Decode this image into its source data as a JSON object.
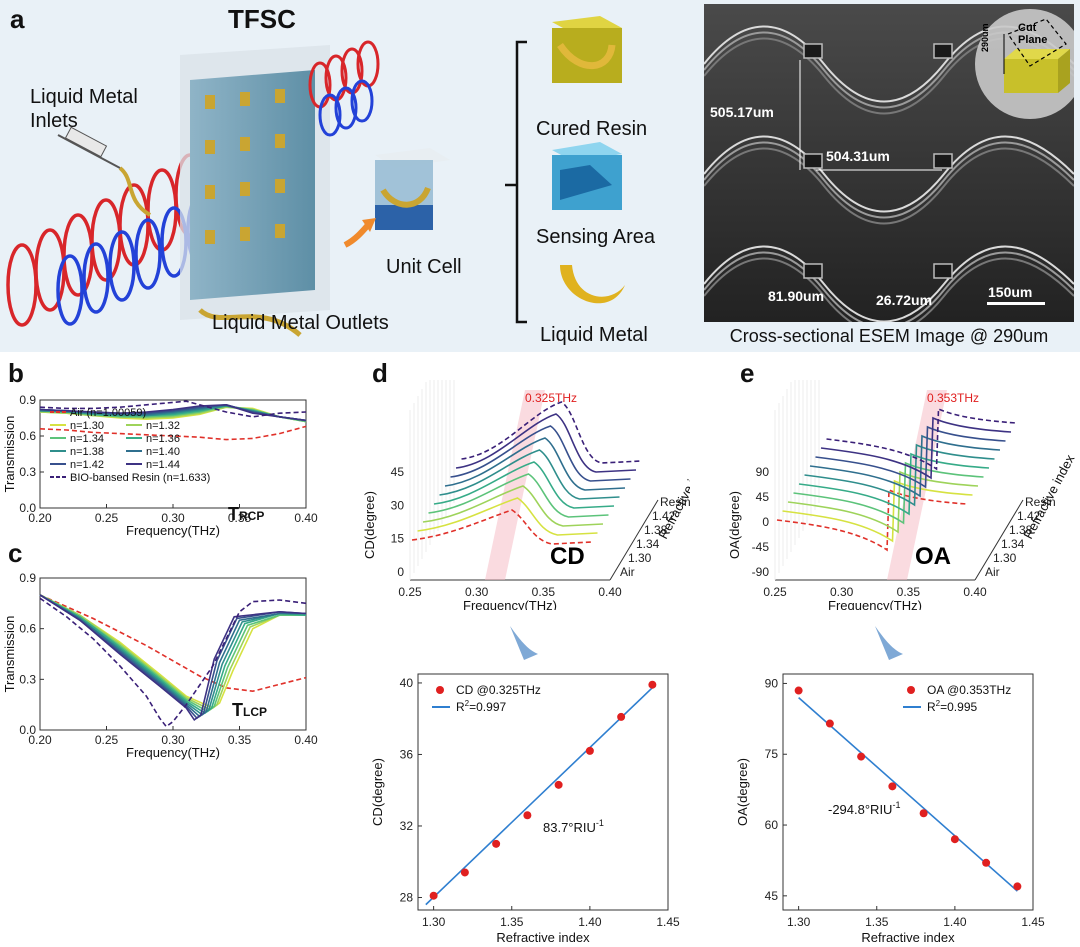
{
  "panel_a": {
    "label": "a",
    "device": "TFSC",
    "inlets": "Liquid Metal Inlets",
    "outlets": "Liquid Metal Outlets",
    "unit_cell": "Unit Cell",
    "parts": [
      "Cured Resin",
      "Sensing Area",
      "Liquid Metal"
    ],
    "sem_caption": "Cross-sectional ESEM Image @ 290um",
    "sem_labels": {
      "period_v": "505.17um",
      "period_h": "504.31um",
      "width1": "81.90um",
      "width2": "26.72um",
      "scalebar": "150um",
      "cut": "Cut Plane",
      "depth": "290um"
    }
  },
  "chart_data": [
    {
      "id": "b",
      "type": "line",
      "panel_label": "b",
      "xlabel": "Frequency(THz)",
      "ylabel": "Transmission",
      "xlim": [
        0.2,
        0.4
      ],
      "ylim": [
        0.0,
        0.9
      ],
      "xticks": [
        "0.20",
        "0.25",
        "0.30",
        "0.35",
        "0.40"
      ],
      "yticks": [
        "0.0",
        "0.3",
        "0.6",
        "0.9"
      ],
      "annotation": "T_RCP",
      "annotation_main": "T",
      "annotation_sub": "RCP",
      "legend": [
        "Air (n=1.00059)",
        "n=1.30",
        "n=1.32",
        "n=1.34",
        "n=1.36",
        "n=1.38",
        "n=1.40",
        "n=1.42",
        "n=1.44",
        "BIO-bansed Resin (n=1.633)"
      ],
      "series": [
        {
          "name": "Air (n=1.00059)",
          "x": [
            0.2,
            0.22,
            0.24,
            0.26,
            0.28,
            0.3,
            0.32,
            0.34,
            0.36,
            0.38,
            0.4
          ],
          "y": [
            0.66,
            0.65,
            0.63,
            0.62,
            0.61,
            0.6,
            0.59,
            0.57,
            0.58,
            0.62,
            0.68
          ]
        },
        {
          "name": "n=1.30",
          "x": [
            0.2,
            0.22,
            0.24,
            0.26,
            0.28,
            0.3,
            0.32,
            0.34,
            0.36,
            0.38,
            0.4
          ],
          "y": [
            0.8,
            0.79,
            0.77,
            0.75,
            0.74,
            0.75,
            0.78,
            0.84,
            0.83,
            0.76,
            0.72
          ]
        },
        {
          "name": "n=1.32",
          "x": [
            0.2,
            0.22,
            0.24,
            0.26,
            0.28,
            0.3,
            0.32,
            0.34,
            0.36,
            0.38,
            0.4
          ],
          "y": [
            0.8,
            0.79,
            0.77,
            0.76,
            0.75,
            0.76,
            0.79,
            0.84,
            0.82,
            0.76,
            0.72
          ]
        },
        {
          "name": "n=1.34",
          "x": [
            0.2,
            0.22,
            0.24,
            0.26,
            0.28,
            0.3,
            0.32,
            0.34,
            0.36,
            0.38,
            0.4
          ],
          "y": [
            0.81,
            0.8,
            0.78,
            0.76,
            0.76,
            0.77,
            0.8,
            0.85,
            0.82,
            0.76,
            0.72
          ]
        },
        {
          "name": "n=1.36",
          "x": [
            0.2,
            0.22,
            0.24,
            0.26,
            0.28,
            0.3,
            0.32,
            0.34,
            0.36,
            0.38,
            0.4
          ],
          "y": [
            0.81,
            0.8,
            0.78,
            0.77,
            0.77,
            0.78,
            0.81,
            0.85,
            0.81,
            0.76,
            0.73
          ]
        },
        {
          "name": "n=1.38",
          "x": [
            0.2,
            0.22,
            0.24,
            0.26,
            0.28,
            0.3,
            0.32,
            0.34,
            0.36,
            0.38,
            0.4
          ],
          "y": [
            0.81,
            0.8,
            0.79,
            0.78,
            0.77,
            0.79,
            0.82,
            0.85,
            0.81,
            0.76,
            0.73
          ]
        },
        {
          "name": "n=1.40",
          "x": [
            0.2,
            0.22,
            0.24,
            0.26,
            0.28,
            0.3,
            0.32,
            0.34,
            0.36,
            0.38,
            0.4
          ],
          "y": [
            0.82,
            0.81,
            0.79,
            0.78,
            0.78,
            0.8,
            0.83,
            0.86,
            0.8,
            0.76,
            0.73
          ]
        },
        {
          "name": "n=1.42",
          "x": [
            0.2,
            0.22,
            0.24,
            0.26,
            0.28,
            0.3,
            0.32,
            0.34,
            0.36,
            0.38,
            0.4
          ],
          "y": [
            0.82,
            0.81,
            0.8,
            0.79,
            0.79,
            0.81,
            0.84,
            0.86,
            0.8,
            0.76,
            0.73
          ]
        },
        {
          "name": "n=1.44",
          "x": [
            0.2,
            0.22,
            0.24,
            0.26,
            0.28,
            0.3,
            0.32,
            0.34,
            0.36,
            0.38,
            0.4
          ],
          "y": [
            0.82,
            0.81,
            0.8,
            0.79,
            0.8,
            0.82,
            0.85,
            0.86,
            0.79,
            0.76,
            0.73
          ]
        },
        {
          "name": "BIO-bansed Resin (n=1.633)",
          "x": [
            0.2,
            0.22,
            0.24,
            0.26,
            0.28,
            0.3,
            0.31,
            0.32,
            0.34,
            0.36,
            0.38,
            0.4
          ],
          "y": [
            0.84,
            0.83,
            0.83,
            0.84,
            0.86,
            0.88,
            0.89,
            0.86,
            0.8,
            0.76,
            0.79,
            0.8
          ]
        }
      ]
    },
    {
      "id": "c",
      "type": "line",
      "panel_label": "c",
      "xlabel": "Frequency(THz)",
      "ylabel": "Transmission",
      "xlim": [
        0.2,
        0.4
      ],
      "ylim": [
        0.0,
        0.9
      ],
      "xticks": [
        "0.20",
        "0.25",
        "0.30",
        "0.35",
        "0.40"
      ],
      "yticks": [
        "0.0",
        "0.3",
        "0.6",
        "0.9"
      ],
      "annotation": "T_LCP",
      "annotation_main": "T",
      "annotation_sub": "LCP",
      "series": [
        {
          "name": "Air (n=1.00059)",
          "x": [
            0.2,
            0.22,
            0.24,
            0.26,
            0.28,
            0.3,
            0.32,
            0.34,
            0.36,
            0.38,
            0.4
          ],
          "y": [
            0.8,
            0.73,
            0.66,
            0.58,
            0.5,
            0.41,
            0.32,
            0.25,
            0.23,
            0.27,
            0.31
          ]
        },
        {
          "name": "n=1.30",
          "x": [
            0.2,
            0.23,
            0.26,
            0.29,
            0.31,
            0.33,
            0.335,
            0.345,
            0.36,
            0.38,
            0.4
          ],
          "y": [
            0.8,
            0.68,
            0.52,
            0.33,
            0.2,
            0.13,
            0.16,
            0.35,
            0.6,
            0.68,
            0.68
          ]
        },
        {
          "name": "n=1.32",
          "x": [
            0.2,
            0.23,
            0.26,
            0.29,
            0.31,
            0.328,
            0.333,
            0.343,
            0.358,
            0.38,
            0.4
          ],
          "y": [
            0.8,
            0.68,
            0.51,
            0.32,
            0.19,
            0.12,
            0.15,
            0.36,
            0.61,
            0.68,
            0.68
          ]
        },
        {
          "name": "n=1.34",
          "x": [
            0.2,
            0.23,
            0.26,
            0.29,
            0.31,
            0.326,
            0.331,
            0.341,
            0.356,
            0.38,
            0.4
          ],
          "y": [
            0.8,
            0.67,
            0.5,
            0.31,
            0.18,
            0.11,
            0.14,
            0.37,
            0.62,
            0.68,
            0.68
          ]
        },
        {
          "name": "n=1.36",
          "x": [
            0.2,
            0.23,
            0.26,
            0.29,
            0.31,
            0.324,
            0.329,
            0.339,
            0.354,
            0.38,
            0.4
          ],
          "y": [
            0.8,
            0.67,
            0.49,
            0.3,
            0.17,
            0.1,
            0.13,
            0.38,
            0.63,
            0.69,
            0.68
          ]
        },
        {
          "name": "n=1.38",
          "x": [
            0.2,
            0.23,
            0.26,
            0.29,
            0.31,
            0.322,
            0.327,
            0.337,
            0.352,
            0.38,
            0.4
          ],
          "y": [
            0.8,
            0.66,
            0.48,
            0.29,
            0.16,
            0.09,
            0.12,
            0.39,
            0.64,
            0.69,
            0.69
          ]
        },
        {
          "name": "n=1.40",
          "x": [
            0.2,
            0.23,
            0.26,
            0.29,
            0.31,
            0.32,
            0.325,
            0.335,
            0.35,
            0.38,
            0.4
          ],
          "y": [
            0.8,
            0.66,
            0.47,
            0.28,
            0.15,
            0.08,
            0.11,
            0.4,
            0.65,
            0.69,
            0.69
          ]
        },
        {
          "name": "n=1.42",
          "x": [
            0.2,
            0.23,
            0.26,
            0.29,
            0.31,
            0.318,
            0.323,
            0.333,
            0.348,
            0.38,
            0.4
          ],
          "y": [
            0.8,
            0.65,
            0.46,
            0.27,
            0.14,
            0.07,
            0.1,
            0.41,
            0.66,
            0.7,
            0.69
          ]
        },
        {
          "name": "n=1.44",
          "x": [
            0.2,
            0.23,
            0.26,
            0.29,
            0.31,
            0.316,
            0.321,
            0.331,
            0.346,
            0.38,
            0.4
          ],
          "y": [
            0.8,
            0.65,
            0.45,
            0.26,
            0.13,
            0.06,
            0.09,
            0.42,
            0.67,
            0.7,
            0.69
          ]
        },
        {
          "name": "BIO-bansed Resin (n=1.633)",
          "x": [
            0.2,
            0.22,
            0.24,
            0.26,
            0.28,
            0.29,
            0.295,
            0.3,
            0.31,
            0.33,
            0.35,
            0.36,
            0.38,
            0.4
          ],
          "y": [
            0.78,
            0.67,
            0.54,
            0.38,
            0.2,
            0.07,
            0.02,
            0.05,
            0.15,
            0.38,
            0.7,
            0.76,
            0.77,
            0.75
          ]
        }
      ]
    },
    {
      "id": "d",
      "type": "line",
      "panel_label": "d",
      "xlabel": "Frequency(THz)",
      "ylabel": "CD(degree)",
      "zlabel": "Refractive index",
      "peak_label": "0.325THz",
      "big_label": "CD",
      "xticks": [
        "0.25",
        "0.30",
        "0.35",
        "0.40"
      ],
      "yticks": [
        "0",
        "15",
        "30",
        "45"
      ],
      "depth_ticks": [
        "Air",
        "1.30",
        "1.34",
        "1.38",
        "1.42",
        "Resin"
      ]
    },
    {
      "id": "e",
      "type": "line",
      "panel_label": "e",
      "xlabel": "Frequency(THz)",
      "ylabel": "OA(degree)",
      "zlabel": "Refractive index",
      "peak_label": "0.353THz",
      "big_label": "OA",
      "xticks": [
        "0.25",
        "0.30",
        "0.35",
        "0.40"
      ],
      "yticks": [
        "-90",
        "-45",
        "0",
        "45",
        "90"
      ],
      "depth_ticks": [
        "Air",
        "1.30",
        "1.34",
        "1.38",
        "1.42",
        "Resin"
      ]
    },
    {
      "id": "d_fit",
      "type": "scatter",
      "xlabel": "Refractive index",
      "ylabel": "CD(degree)",
      "xlim": [
        1.29,
        1.45
      ],
      "ylim": [
        27.3,
        40.5
      ],
      "xticks": [
        "1.30",
        "1.35",
        "1.40",
        "1.45"
      ],
      "yticks": [
        "28",
        "32",
        "36",
        "40"
      ],
      "legend_points": "CD @0.325THz",
      "legend_fit_main": "R",
      "legend_fit_sup": "2",
      "legend_fit_rest": "=0.997",
      "slope_main": "83.7°RIU",
      "slope_sup": "-1",
      "x": [
        1.3,
        1.32,
        1.34,
        1.36,
        1.38,
        1.4,
        1.42,
        1.44
      ],
      "y": [
        28.1,
        29.4,
        31.0,
        32.6,
        34.3,
        36.2,
        38.1,
        39.9
      ],
      "fit": {
        "x": [
          1.295,
          1.442
        ],
        "y": [
          27.6,
          39.9
        ]
      }
    },
    {
      "id": "e_fit",
      "type": "scatter",
      "xlabel": "Refractive index",
      "ylabel": "OA(degree)",
      "xlim": [
        1.29,
        1.45
      ],
      "ylim": [
        42,
        92
      ],
      "xticks": [
        "1.30",
        "1.35",
        "1.40",
        "1.45"
      ],
      "yticks": [
        "45",
        "60",
        "75",
        "90"
      ],
      "legend_points": "OA @0.353THz",
      "legend_fit_main": "R",
      "legend_fit_sup": "2",
      "legend_fit_rest": "=0.995",
      "slope_main": "-294.8°RIU",
      "slope_sup": "-1",
      "x": [
        1.3,
        1.32,
        1.34,
        1.36,
        1.38,
        1.4,
        1.42,
        1.44
      ],
      "y": [
        88.5,
        81.5,
        74.5,
        68.2,
        62.5,
        57.0,
        52.0,
        47.0
      ],
      "fit": {
        "x": [
          1.3,
          1.44
        ],
        "y": [
          87.0,
          46.0
        ]
      }
    }
  ],
  "colors": {
    "air": "#e0312a",
    "resin": "#3a2078",
    "series": [
      "#d6e241",
      "#9ed35a",
      "#5cc37a",
      "#36ab88",
      "#2f8e8c",
      "#2f6f8e",
      "#37508d",
      "#3d3283"
    ],
    "fit": "#2f7fd0",
    "point": "#e02020",
    "accent_red": "#e02020"
  }
}
